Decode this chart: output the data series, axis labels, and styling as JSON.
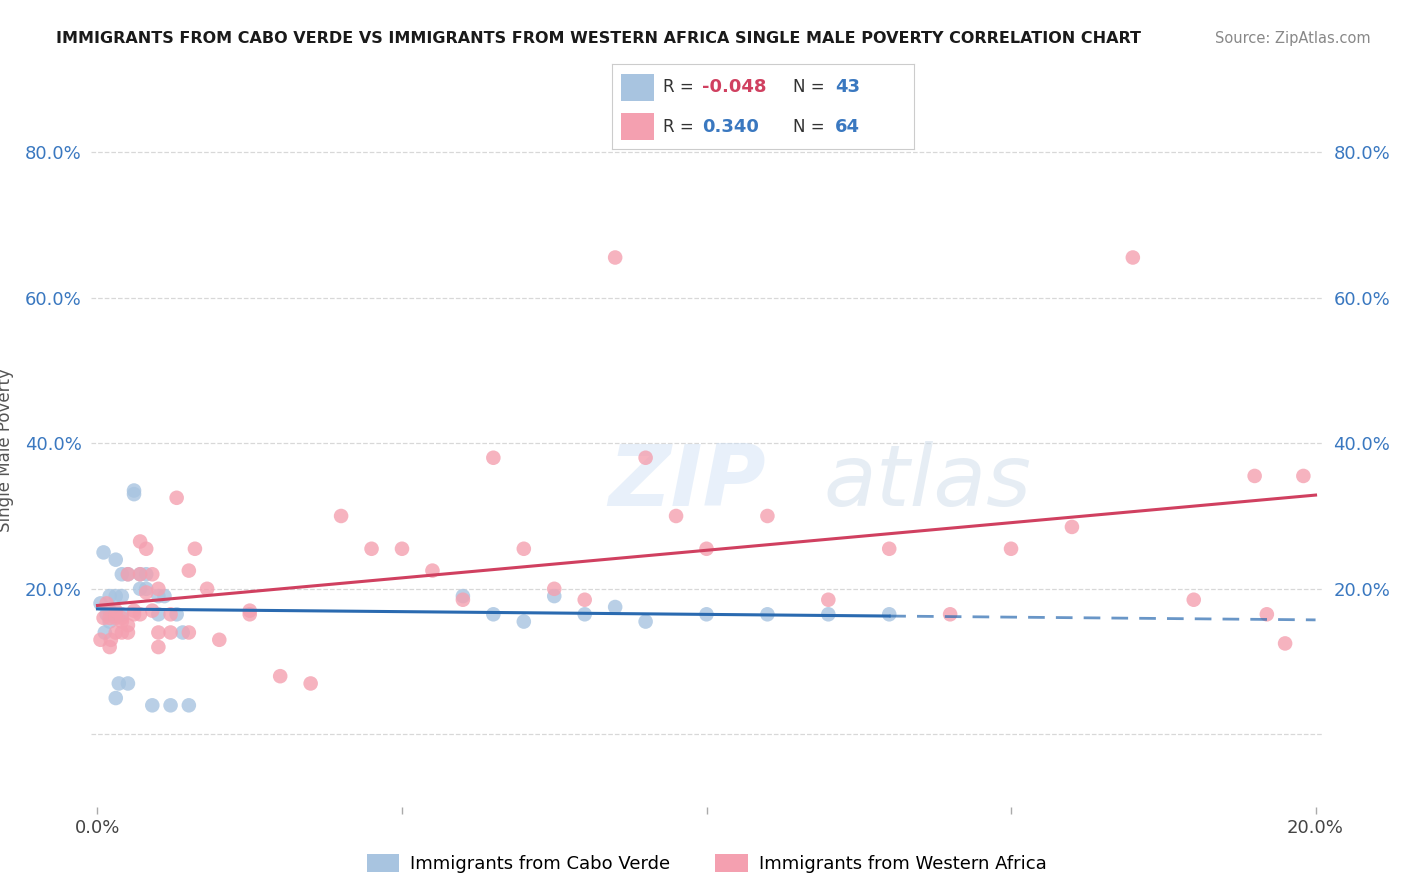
{
  "title": "IMMIGRANTS FROM CABO VERDE VS IMMIGRANTS FROM WESTERN AFRICA SINGLE MALE POVERTY CORRELATION CHART",
  "source": "Source: ZipAtlas.com",
  "ylabel": "Single Male Poverty",
  "xlim": [
    -0.001,
    0.201
  ],
  "ylim": [
    -0.1,
    0.88
  ],
  "yticks": [
    0.0,
    0.2,
    0.4,
    0.6,
    0.8
  ],
  "xticks": [
    0.0,
    0.05,
    0.1,
    0.15,
    0.2
  ],
  "cabo_verde_R": -0.048,
  "cabo_verde_N": 43,
  "western_africa_R": 0.34,
  "western_africa_N": 64,
  "cabo_verde_color": "#a8c4e0",
  "western_africa_color": "#f4a0b0",
  "cabo_verde_line_color": "#2a6ab0",
  "western_africa_line_color": "#d04060",
  "cabo_verde_x": [
    0.0005,
    0.001,
    0.0012,
    0.0015,
    0.002,
    0.002,
    0.002,
    0.0025,
    0.003,
    0.003,
    0.003,
    0.003,
    0.0035,
    0.004,
    0.004,
    0.004,
    0.005,
    0.005,
    0.006,
    0.006,
    0.007,
    0.007,
    0.008,
    0.008,
    0.009,
    0.01,
    0.01,
    0.011,
    0.012,
    0.013,
    0.014,
    0.015,
    0.06,
    0.065,
    0.07,
    0.075,
    0.08,
    0.085,
    0.09,
    0.1,
    0.11,
    0.12,
    0.13
  ],
  "cabo_verde_y": [
    0.18,
    0.25,
    0.14,
    0.165,
    0.19,
    0.17,
    0.155,
    0.165,
    0.24,
    0.19,
    0.165,
    0.05,
    0.07,
    0.22,
    0.19,
    0.165,
    0.22,
    0.07,
    0.335,
    0.33,
    0.2,
    0.22,
    0.2,
    0.22,
    0.04,
    0.19,
    0.165,
    0.19,
    0.04,
    0.165,
    0.14,
    0.04,
    0.19,
    0.165,
    0.155,
    0.19,
    0.165,
    0.175,
    0.155,
    0.165,
    0.165,
    0.165,
    0.165
  ],
  "western_africa_x": [
    0.0005,
    0.001,
    0.0015,
    0.002,
    0.002,
    0.0022,
    0.003,
    0.003,
    0.003,
    0.004,
    0.004,
    0.004,
    0.005,
    0.005,
    0.005,
    0.006,
    0.006,
    0.007,
    0.007,
    0.007,
    0.008,
    0.008,
    0.009,
    0.009,
    0.01,
    0.01,
    0.01,
    0.012,
    0.012,
    0.013,
    0.015,
    0.015,
    0.016,
    0.018,
    0.02,
    0.025,
    0.025,
    0.03,
    0.035,
    0.04,
    0.045,
    0.05,
    0.055,
    0.06,
    0.065,
    0.07,
    0.075,
    0.08,
    0.085,
    0.09,
    0.095,
    0.1,
    0.11,
    0.12,
    0.13,
    0.14,
    0.15,
    0.16,
    0.17,
    0.18,
    0.19,
    0.192,
    0.195,
    0.198
  ],
  "western_africa_y": [
    0.13,
    0.16,
    0.18,
    0.12,
    0.16,
    0.13,
    0.14,
    0.16,
    0.17,
    0.155,
    0.14,
    0.16,
    0.15,
    0.14,
    0.22,
    0.165,
    0.17,
    0.165,
    0.265,
    0.22,
    0.195,
    0.255,
    0.17,
    0.22,
    0.14,
    0.2,
    0.12,
    0.165,
    0.14,
    0.325,
    0.225,
    0.14,
    0.255,
    0.2,
    0.13,
    0.165,
    0.17,
    0.08,
    0.07,
    0.3,
    0.255,
    0.255,
    0.225,
    0.185,
    0.38,
    0.255,
    0.2,
    0.185,
    0.655,
    0.38,
    0.3,
    0.255,
    0.3,
    0.185,
    0.255,
    0.165,
    0.255,
    0.285,
    0.655,
    0.185,
    0.355,
    0.165,
    0.125,
    0.355
  ],
  "watermark": "ZIPatlas",
  "bg_color": "#ffffff",
  "grid_color": "#d8d8d8"
}
